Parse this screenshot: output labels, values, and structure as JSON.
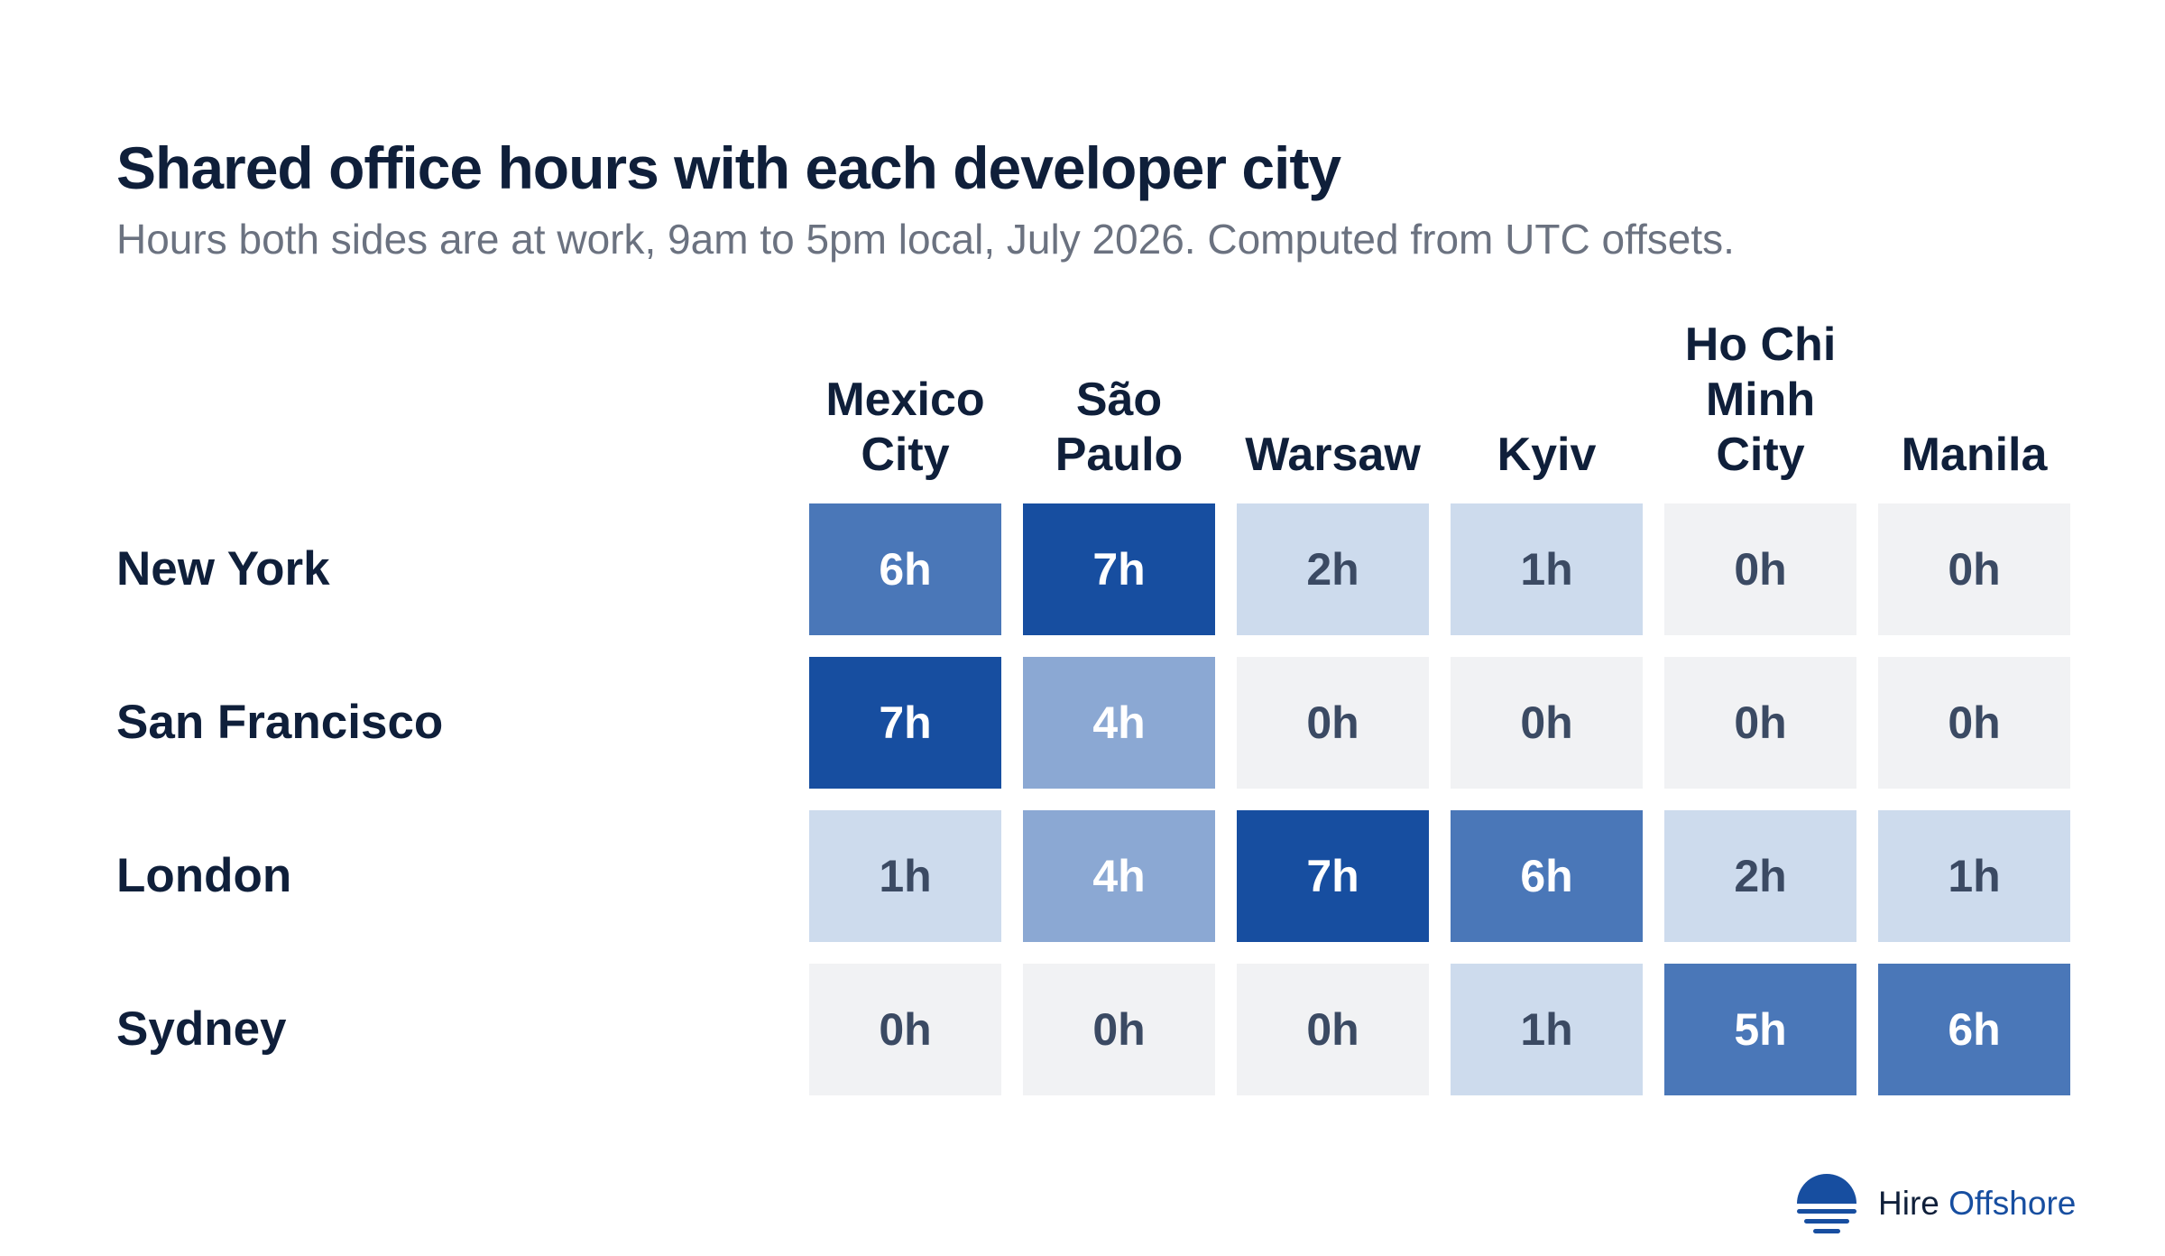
{
  "header": {
    "title": "Shared office hours with each developer city",
    "subtitle": "Hours both sides are at work, 9am to 5pm local, July 2026. Computed from UTC offsets."
  },
  "chart_data": {
    "type": "heatmap",
    "columns": [
      [
        "Mexico",
        "City"
      ],
      [
        "São",
        "Paulo"
      ],
      [
        "Warsaw"
      ],
      [
        "Kyiv"
      ],
      [
        "Ho Chi",
        "Minh",
        "City"
      ],
      [
        "Manila"
      ]
    ],
    "rows": [
      "New York",
      "San Francisco",
      "London",
      "Sydney"
    ],
    "values": [
      [
        6,
        7,
        2,
        1,
        0,
        0
      ],
      [
        7,
        4,
        0,
        0,
        0,
        0
      ],
      [
        1,
        4,
        7,
        6,
        2,
        1
      ],
      [
        0,
        0,
        0,
        1,
        5,
        6
      ]
    ],
    "unit_suffix": "h",
    "color_scale": {
      "0": "#f1f2f4",
      "1": "#cddbed",
      "2": "#cddbed",
      "4": "#8ba8d3",
      "5": "#4a77b8",
      "6": "#4a77b8",
      "7": "#174ea0"
    },
    "text_colors": {
      "light": "#ffffff",
      "dark": "#3b4a63"
    }
  },
  "logo": {
    "text_primary": "Hire",
    "text_accent": "Offshore",
    "colors": {
      "accent": "#174ea0",
      "dark": "#0f1f3a"
    },
    "icon": "sunset-logo-icon"
  }
}
